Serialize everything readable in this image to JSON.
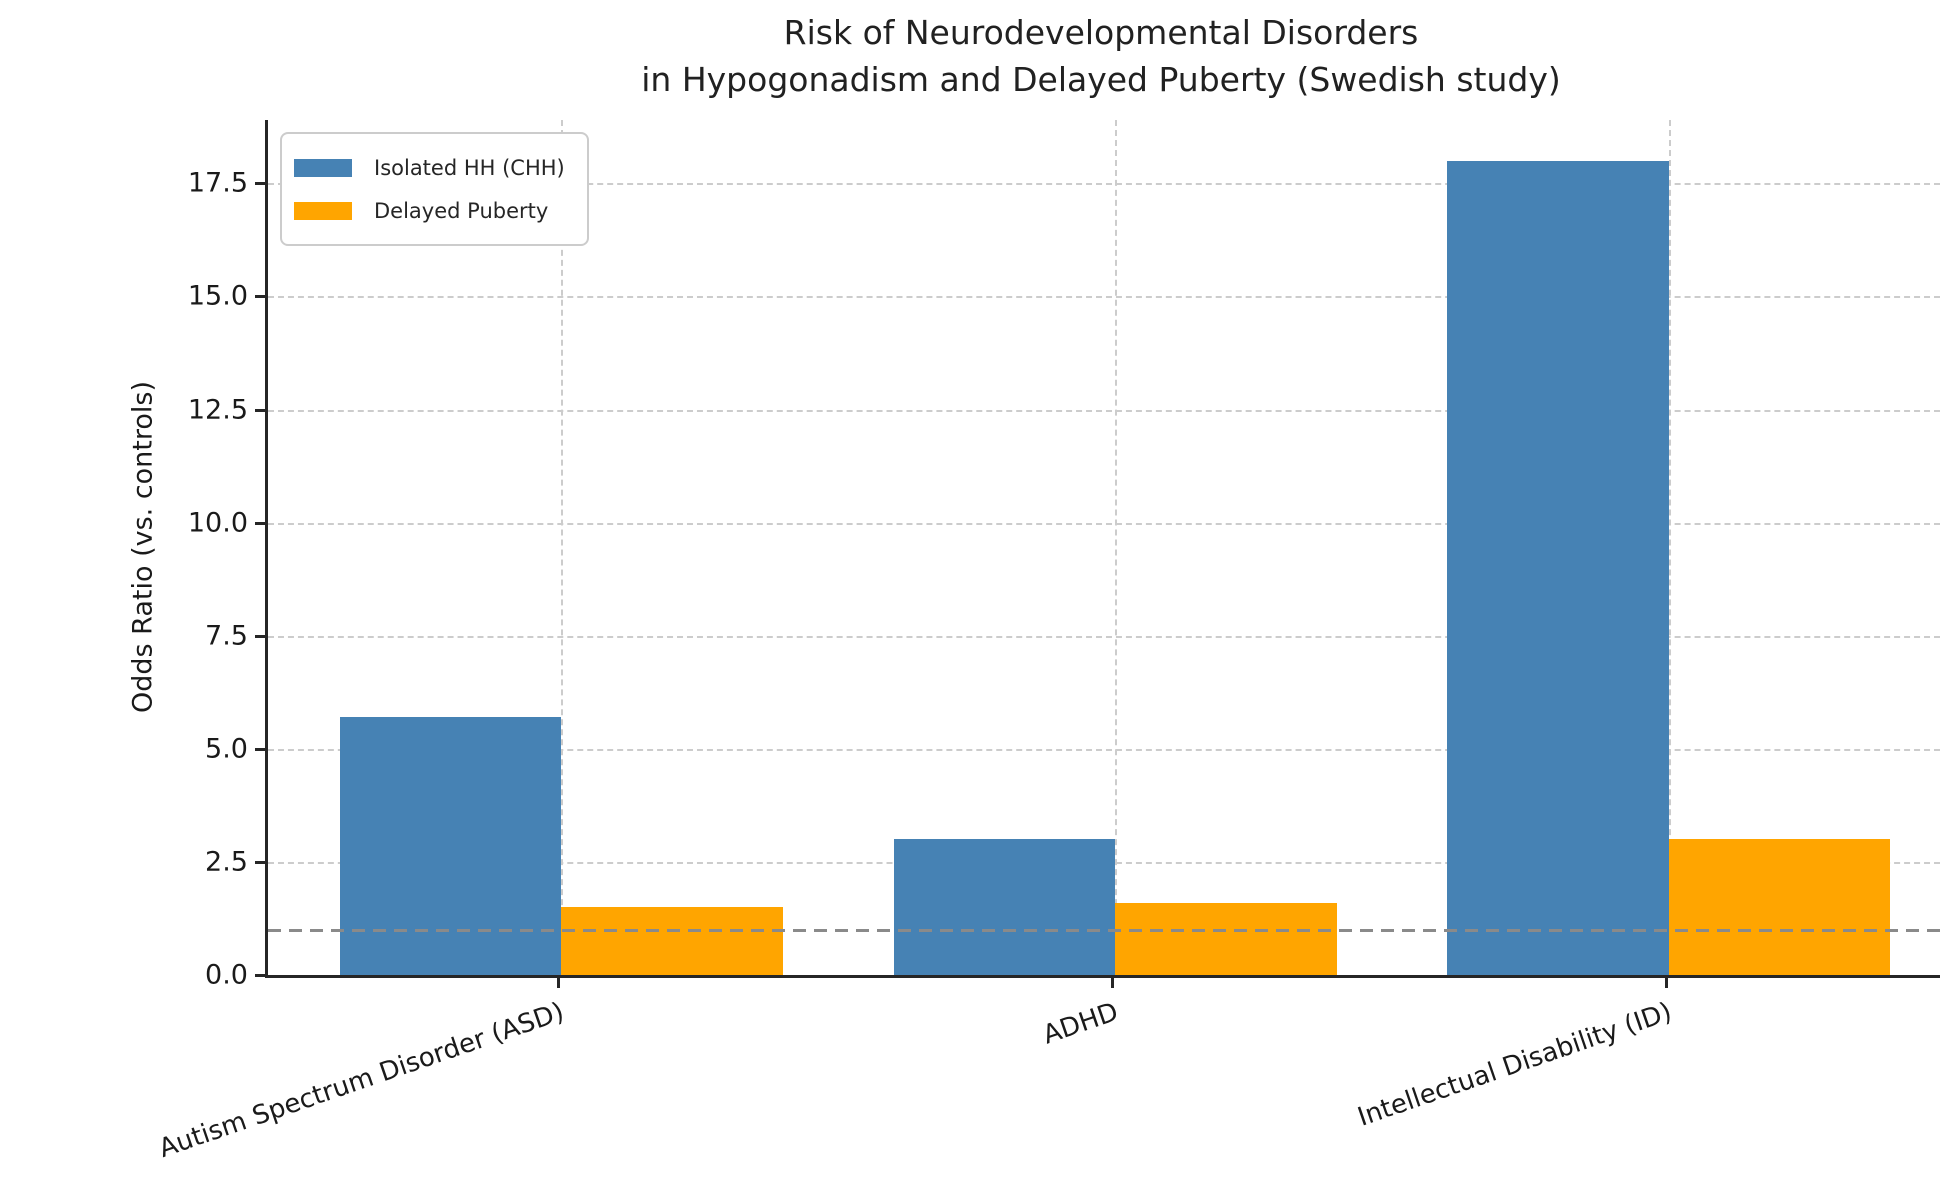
{
  "chart_data": {
    "type": "bar",
    "title": "Risk of Neurodevelopmental Disorders in Hypogonadism and Delayed Puberty (Swedish study)",
    "title_lines": [
      "Risk of Neurodevelopmental Disorders",
      "in Hypogonadism and Delayed Puberty (Swedish study)"
    ],
    "ylabel": "Odds Ratio (vs. controls)",
    "xlabel": "",
    "categories": [
      "Autism Spectrum Disorder (ASD)",
      "ADHD",
      "Intellectual Disability (ID)"
    ],
    "series": [
      {
        "name": "Isolated HH (CHH)",
        "color": "#4682B4",
        "values": [
          5.7,
          3.0,
          18.0
        ]
      },
      {
        "name": "Delayed Puberty",
        "color": "#FFA500",
        "values": [
          1.5,
          1.6,
          3.0
        ]
      }
    ],
    "yticks": [
      0.0,
      2.5,
      5.0,
      7.5,
      10.0,
      12.5,
      15.0,
      17.5
    ],
    "ytick_labels": [
      "0.0",
      "2.5",
      "5.0",
      "7.5",
      "10.0",
      "12.5",
      "15.0",
      "17.5"
    ],
    "ylim": [
      0,
      18.9
    ],
    "reference_line": {
      "y": 1.0,
      "color": "#8a8a8a",
      "style": "dashed"
    },
    "grid": "both-dashed",
    "legend_position": "upper left",
    "bar_width_category_units": 0.4,
    "x_tick_rotation_deg": 19
  }
}
